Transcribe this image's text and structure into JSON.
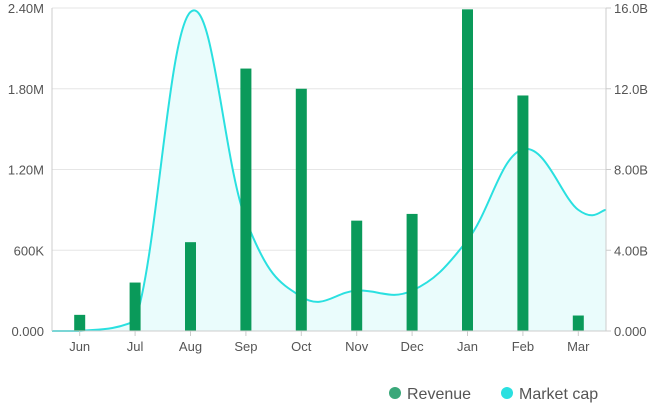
{
  "chart_data": {
    "type": "bar",
    "categories": [
      "Jun",
      "Jul",
      "Aug",
      "Sep",
      "Oct",
      "Nov",
      "Dec",
      "Jan",
      "Feb",
      "Mar"
    ],
    "series": [
      {
        "name": "Revenue",
        "type": "bar",
        "axis": "left",
        "color": "#0a9a5a",
        "values": [
          120000,
          360000,
          660000,
          1950000,
          1800000,
          820000,
          870000,
          2390000,
          1750000,
          115000
        ]
      },
      {
        "name": "Market cap",
        "type": "area",
        "axis": "right",
        "color": "#2ae0e0",
        "values": [
          0,
          0.5,
          15.8,
          5.5,
          1.7,
          2.0,
          2.0,
          4.5,
          9.0,
          6.0
        ]
      }
    ],
    "y_left": {
      "ylim": [
        0,
        2400000
      ],
      "ticks": [
        0,
        600000,
        1200000,
        1800000,
        2400000
      ],
      "tick_labels": [
        "0.000",
        "600K",
        "1.20M",
        "1.80M",
        "2.40M"
      ]
    },
    "y_right": {
      "ylim": [
        0,
        16
      ],
      "ticks": [
        0,
        4,
        8,
        12,
        16
      ],
      "tick_labels": [
        "0.000",
        "4.00B",
        "8.00B",
        "12.0B",
        "16.0B"
      ]
    },
    "grid": "horizontal",
    "legend": {
      "position": "bottom-right",
      "entries": [
        "Revenue",
        "Market cap"
      ]
    }
  }
}
